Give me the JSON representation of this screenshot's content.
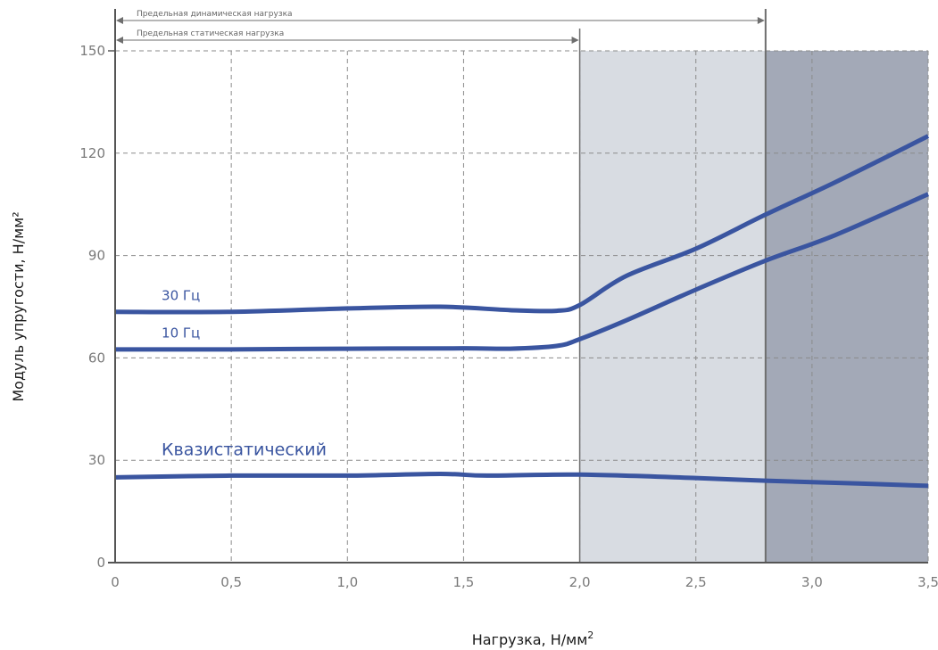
{
  "chart_data": {
    "type": "line",
    "xlabel": "Нагрузка, Н/мм",
    "xlabel_sup": "2",
    "ylabel": "Модуль упругости, Н/мм²",
    "xlim": [
      0,
      3.5
    ],
    "ylim": [
      0,
      150
    ],
    "x_ticks": [
      0,
      0.5,
      1.0,
      1.5,
      2.0,
      2.5,
      3.0,
      3.5
    ],
    "x_tick_labels": [
      "0",
      "0,5",
      "1,0",
      "1,5",
      "2,0",
      "2,5",
      "3,0",
      "3,5"
    ],
    "y_ticks": [
      0,
      30,
      60,
      90,
      120,
      150
    ],
    "y_tick_labels": [
      "0",
      "30",
      "60",
      "90",
      "120",
      "150"
    ],
    "grid": true,
    "regions": [
      {
        "x_start": 2.0,
        "x_end": 3.5,
        "color": "#d8dce2"
      },
      {
        "x_start": 2.8,
        "x_end": 3.5,
        "color": "#a3a9b7"
      }
    ],
    "limits": [
      {
        "label": "Предельная динамическая нагрузка",
        "x_end": 2.8,
        "level": 1
      },
      {
        "label": "Предельная статическая нагрузка",
        "x_end": 2.0,
        "level": 2
      }
    ],
    "series": [
      {
        "name": "30 Гц",
        "label_x": 0.2,
        "label_y": 77,
        "label_size": 15,
        "x": [
          0,
          0.5,
          1.0,
          1.4,
          1.7,
          1.9,
          2.0,
          2.2,
          2.5,
          2.8,
          3.1,
          3.5
        ],
        "y": [
          73.5,
          73.5,
          74.5,
          75,
          74,
          73.8,
          75.5,
          84,
          92,
          102,
          111.5,
          125
        ]
      },
      {
        "name": "10 Гц",
        "label_x": 0.2,
        "label_y": 66,
        "label_size": 15,
        "x": [
          0,
          0.5,
          1.0,
          1.5,
          1.7,
          1.9,
          2.0,
          2.2,
          2.5,
          2.8,
          3.1,
          3.5
        ],
        "y": [
          62.5,
          62.5,
          62.7,
          62.8,
          62.7,
          63.5,
          65.5,
          71,
          80,
          88.5,
          96,
          108
        ]
      },
      {
        "name": "Квазистатический",
        "label_x": 0.2,
        "label_y": 31.5,
        "label_size": 19,
        "x": [
          0,
          0.5,
          1.0,
          1.4,
          1.6,
          2.0,
          2.5,
          2.8,
          3.2,
          3.5
        ],
        "y": [
          25,
          25.5,
          25.5,
          26,
          25.5,
          25.8,
          24.8,
          24,
          23.2,
          22.5
        ]
      }
    ],
    "colors": {
      "series": "#3a55a0",
      "axis": "#555555",
      "grid": "#8a8a8a",
      "limit_line": "#6e6e6e"
    }
  }
}
